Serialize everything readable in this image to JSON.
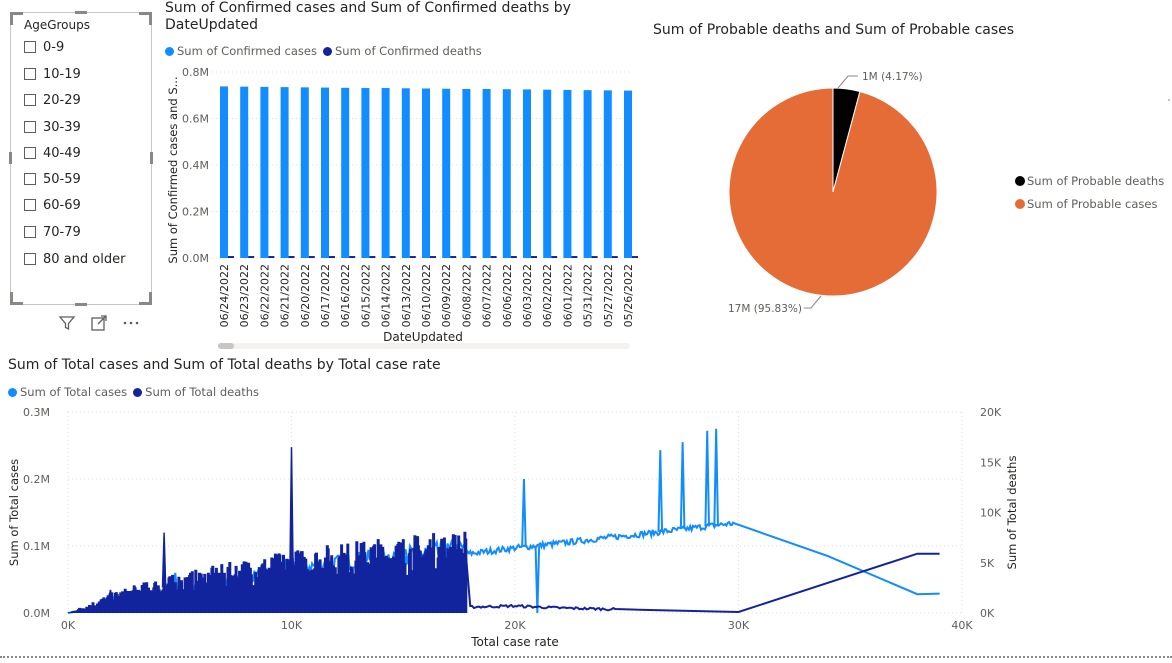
{
  "slicer": {
    "title": "AgeGroups",
    "items": [
      {
        "label": "0-9"
      },
      {
        "label": "10-19"
      },
      {
        "label": "20-29"
      },
      {
        "label": "30-39"
      },
      {
        "label": "40-49"
      },
      {
        "label": "50-59"
      },
      {
        "label": "60-69"
      },
      {
        "label": "70-79"
      },
      {
        "label": "80 and older"
      }
    ],
    "icons": [
      "filter-icon",
      "focus-mode-icon",
      "more-options-icon"
    ]
  },
  "colors": {
    "light_blue": "#118dff",
    "dark_blue": "#12239e",
    "orange": "#e66c37",
    "black": "#000000",
    "grid": "#e1dfdd"
  },
  "chart_data": [
    {
      "type": "bar",
      "title": "Sum of Confirmed cases and Sum of Confirmed deaths by DateUpdated",
      "title_line1": "Sum of Confirmed cases and Sum of Confirmed deaths by",
      "title_line2": "DateUpdated",
      "xlabel": "DateUpdated",
      "ylabel": "Sum of Confirmed cases and S...",
      "ylim": [
        0,
        800000
      ],
      "yticks": [
        "0.0M",
        "0.2M",
        "0.4M",
        "0.6M",
        "0.8M"
      ],
      "grid": true,
      "legend_position": "top-left",
      "categories": [
        "06/24/2022",
        "06/23/2022",
        "06/22/2022",
        "06/21/2022",
        "06/20/2022",
        "06/17/2022",
        "06/16/2022",
        "06/15/2022",
        "06/14/2022",
        "06/13/2022",
        "06/10/2022",
        "06/09/2022",
        "06/08/2022",
        "06/07/2022",
        "06/06/2022",
        "06/03/2022",
        "06/02/2022",
        "06/01/2022",
        "05/31/2022",
        "05/27/2022",
        "05/26/2022"
      ],
      "series": [
        {
          "name": "Sum of Confirmed cases",
          "color": "#118dff",
          "values": [
            738000,
            737000,
            736000,
            735000,
            734000,
            733000,
            732000,
            731000,
            731000,
            730000,
            729000,
            728000,
            727000,
            727000,
            726000,
            725000,
            724000,
            723000,
            722000,
            721000,
            720000
          ]
        },
        {
          "name": "Sum of Confirmed deaths",
          "color": "#12239e",
          "values": [
            8400,
            8400,
            8400,
            8400,
            8400,
            8400,
            8400,
            8400,
            8400,
            8400,
            8400,
            8400,
            8400,
            8400,
            8400,
            8400,
            8400,
            8400,
            8300,
            8300,
            8300
          ]
        }
      ]
    },
    {
      "type": "pie",
      "title": "Sum of Probable deaths and Sum of Probable cases",
      "legend_position": "right",
      "slices": [
        {
          "name": "Sum of Probable deaths",
          "value": 1,
          "percent": 4.17,
          "label": "1M (4.17%)",
          "color": "#000000"
        },
        {
          "name": "Sum of Probable cases",
          "value": 17,
          "percent": 95.83,
          "label": "17M (95.83%)",
          "color": "#e66c37"
        }
      ]
    },
    {
      "type": "line",
      "title": "Sum of Total cases and Sum of Total deaths by Total case rate",
      "xlabel": "Total case rate",
      "ylabel": "Sum of Total cases",
      "y2label": "Sum of Total deaths",
      "xlim": [
        0,
        40000
      ],
      "ylim": [
        0,
        300000
      ],
      "y2lim": [
        0,
        20000
      ],
      "xticks": [
        "0K",
        "10K",
        "20K",
        "30K",
        "40K"
      ],
      "yticks": [
        "0.0M",
        "0.1M",
        "0.2M",
        "0.3M"
      ],
      "y2ticks": [
        "0K",
        "5K",
        "10K",
        "15K",
        "20K"
      ],
      "grid": true,
      "legend_position": "top-left",
      "series": [
        {
          "name": "Sum of Total cases",
          "color": "#118dff",
          "axis": "left",
          "x": [
            0,
            2000,
            4000,
            6000,
            8000,
            10000,
            12000,
            14000,
            16000,
            17800,
            20000,
            22000,
            24000,
            26000,
            28000,
            29000,
            29800,
            34000,
            38000,
            39000
          ],
          "y": [
            0,
            12000,
            25000,
            38000,
            50000,
            62000,
            70000,
            78000,
            84000,
            88000,
            97000,
            104000,
            112000,
            119000,
            127000,
            131000,
            134000,
            85000,
            28000,
            29000
          ],
          "peaks": [
            {
              "x": 2000,
              "y": 25000
            },
            {
              "x": 4800,
              "y": 60000
            },
            {
              "x": 9700,
              "y": 80000
            },
            {
              "x": 13000,
              "y": 90000
            },
            {
              "x": 15100,
              "y": 95000
            },
            {
              "x": 16000,
              "y": 97000
            },
            {
              "x": 20400,
              "y": 200000
            },
            {
              "x": 21000,
              "y": 0
            },
            {
              "x": 26500,
              "y": 243000
            },
            {
              "x": 27500,
              "y": 255000
            },
            {
              "x": 28600,
              "y": 272000
            },
            {
              "x": 29000,
              "y": 275000
            }
          ]
        },
        {
          "name": "Sum of Total deaths",
          "color": "#12239e",
          "axis": "right",
          "x": [
            0,
            2000,
            4000,
            6000,
            8000,
            10000,
            12000,
            14000,
            16000,
            17800,
            18000,
            20000,
            22000,
            24000,
            26000,
            28000,
            30000,
            34000,
            38000,
            39000
          ],
          "y": [
            0,
            1500,
            2500,
            3200,
            3900,
            4500,
            5000,
            5400,
            5700,
            5900,
            600,
            700,
            500,
            400,
            300,
            200,
            100,
            3000,
            5900,
            5900
          ],
          "peaks": [
            {
              "x": 4300,
              "y": 8000
            },
            {
              "x": 10000,
              "y": 16500
            },
            {
              "x": 1900,
              "y": 2300
            }
          ]
        }
      ]
    }
  ]
}
